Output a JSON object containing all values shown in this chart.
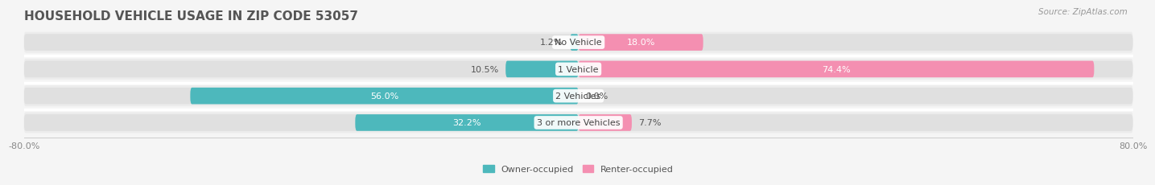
{
  "title": "HOUSEHOLD VEHICLE USAGE IN ZIP CODE 53057",
  "source": "Source: ZipAtlas.com",
  "categories": [
    "No Vehicle",
    "1 Vehicle",
    "2 Vehicles",
    "3 or more Vehicles"
  ],
  "owner_values": [
    1.2,
    10.5,
    56.0,
    32.2
  ],
  "renter_values": [
    18.0,
    74.4,
    0.0,
    7.7
  ],
  "owner_color": "#4db8bc",
  "renter_color": "#f48fb1",
  "bar_height": 0.62,
  "xlim": [
    -80,
    80
  ],
  "xtick_left": -80,
  "xtick_right": 80,
  "xticklabel_left": "-80.0%",
  "xticklabel_right": "80.0%",
  "background_color": "#f5f5f5",
  "bar_background_color": "#e8e8e8",
  "row_bg_colors": [
    "#eeeeee",
    "#e8e8e8",
    "#eeeeee",
    "#e8e8e8"
  ],
  "title_fontsize": 11,
  "source_fontsize": 7.5,
  "label_fontsize": 8,
  "category_fontsize": 8,
  "legend_fontsize": 8,
  "axis_fontsize": 8
}
